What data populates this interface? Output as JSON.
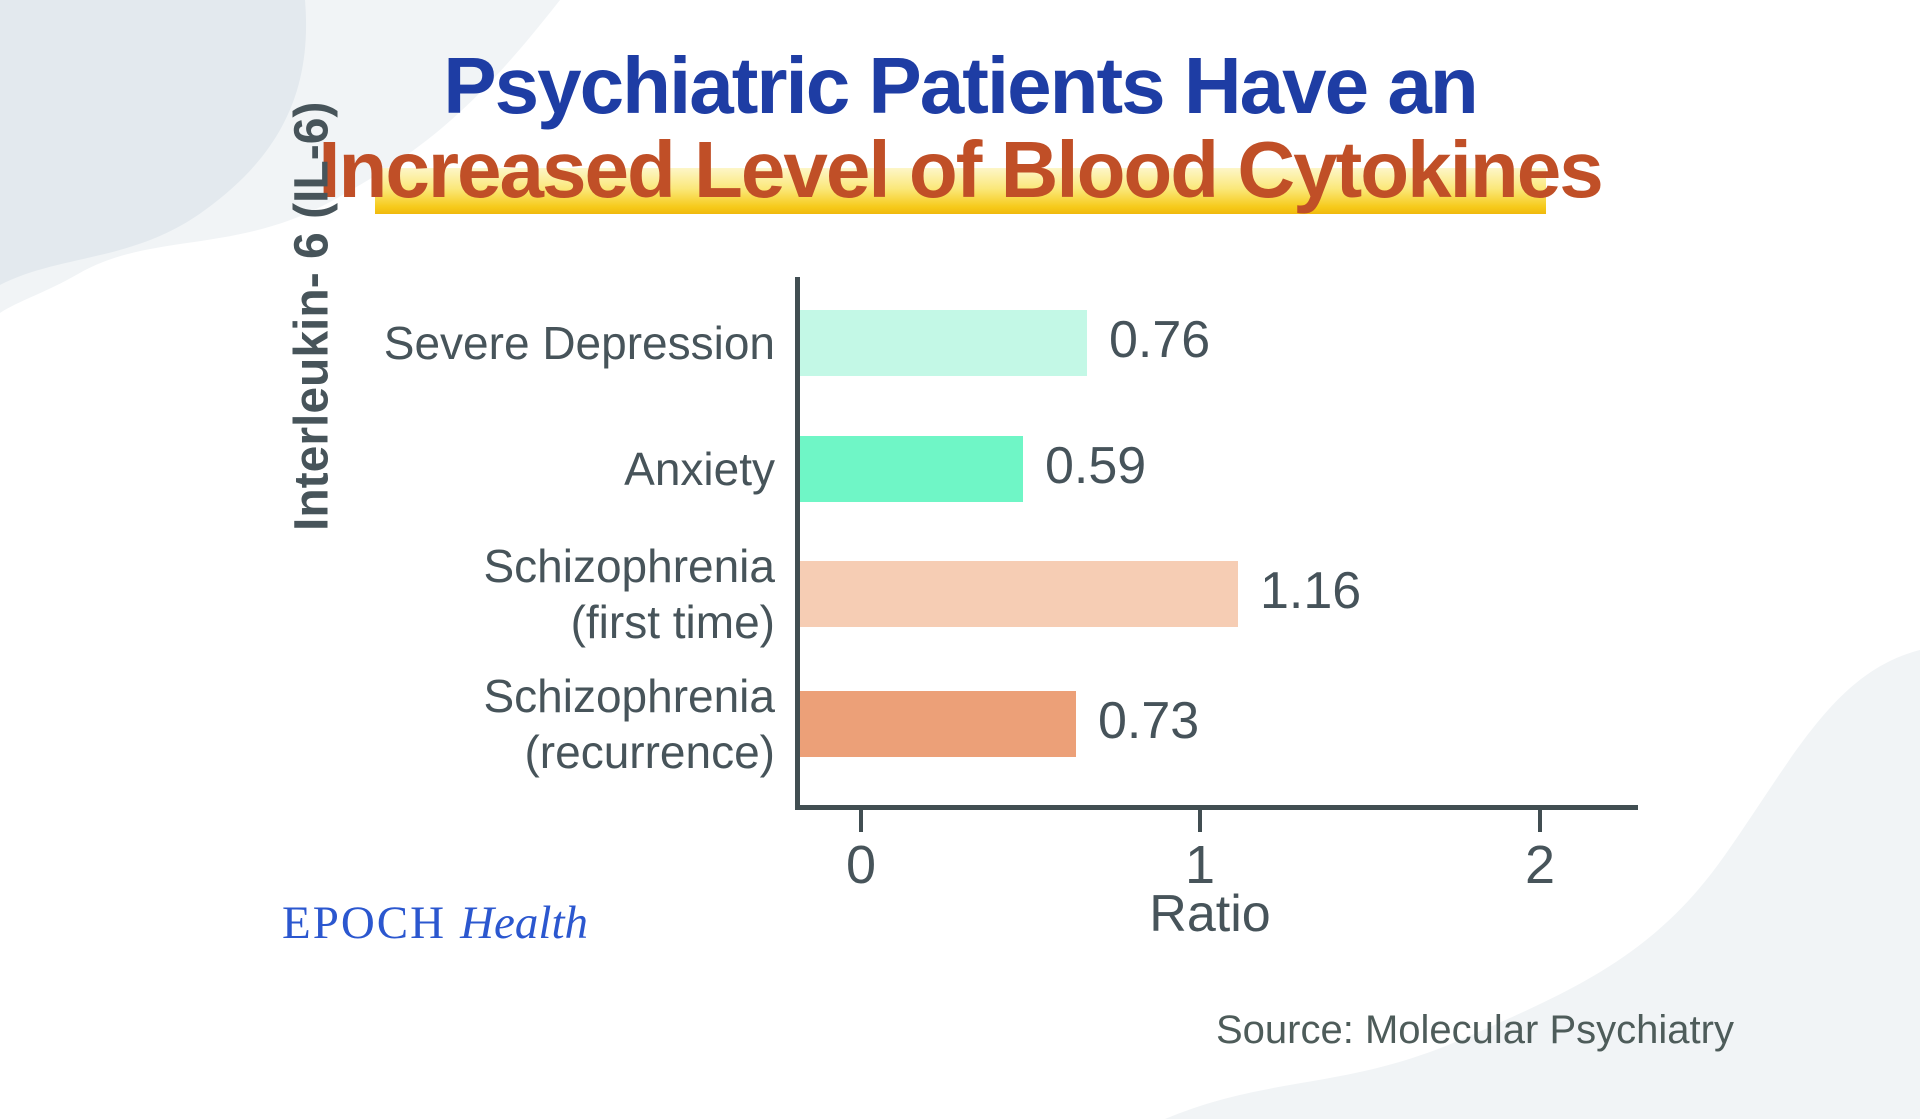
{
  "title": {
    "line1": "Psychiatric Patients Have an",
    "line2": "Increased Level of Blood Cytokines"
  },
  "chart_data": {
    "type": "bar",
    "orientation": "horizontal",
    "title": "Psychiatric Patients Have an Increased Level of Blood Cytokines",
    "categories": [
      "Severe Depression",
      "Anxiety",
      "Schizophrenia (first time)",
      "Schizophrenia (recurrence)"
    ],
    "categories_lines": [
      [
        "Severe Depression"
      ],
      [
        "Anxiety"
      ],
      [
        "Schizophrenia",
        "(first time)"
      ],
      [
        "Schizophrenia",
        "(recurrence)"
      ]
    ],
    "values": [
      0.76,
      0.59,
      1.16,
      0.73
    ],
    "value_labels": [
      "0.76",
      "0.59",
      "1.16",
      "0.73"
    ],
    "bar_colors": [
      "#c3f8e6",
      "#6ff6c6",
      "#f6cdb4",
      "#eca078"
    ],
    "xlabel": "Ratio",
    "ylabel": "Interleukin- 6 (IL-6)",
    "x_ticks": [
      "0",
      "1",
      "2"
    ],
    "xlim": [
      0,
      2.3
    ],
    "grid": false,
    "legend": null
  },
  "footer": {
    "logo_epoch": "EPOCH",
    "logo_health": "Health",
    "source": "Source: Molecular Psychiatry"
  },
  "colors": {
    "title_line1": "#1e3da4",
    "title_line2": "#c04f27",
    "highlight_top": "#fdf6c8",
    "highlight_bottom": "#f0b90d",
    "axis": "#414e52",
    "label_text": "#47545a",
    "logo_blue": "#2b57cf",
    "source_text": "#4e5c5a",
    "wave_dark": "#e3e9ee",
    "wave_light": "#f1f4f6"
  }
}
